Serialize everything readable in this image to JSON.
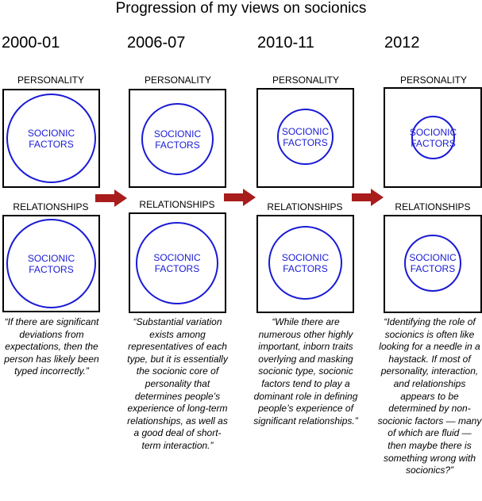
{
  "title": "Progression of my views on socionics",
  "labels": {
    "personality": "PERSONALITY",
    "relationships": "RELATIONSHIPS",
    "socionic_line1": "SOCIONIC",
    "socionic_line2": "FACTORS"
  },
  "periods": [
    {
      "year": "2000-01",
      "quote": "“If there are significant deviations from expectations, then the person has likely been typed incorrectly.”"
    },
    {
      "year": "2006-07",
      "quote": "“Substantial variation exists among representatives of each type, but it is essentially the socionic core of personality that determines people’s experience of long-term relationships, as well as a good deal of short-term interaction.”"
    },
    {
      "year": "2010-11",
      "quote": "“While there are numerous other highly important, inborn traits overlying and masking socionic type, socionic factors tend to play a dominant role in defining people’s experience of significant relationships.”"
    },
    {
      "year": "2012",
      "quote": "“Identifying the role of socionics is often like looking for a needle in a haystack. If most of personality, interaction, and relationships appears to be determined by non-socionic factors — many of which are fluid — then maybe there is something wrong with socionics?”"
    }
  ],
  "colors": {
    "circle": "#1a1ad6",
    "arrow": "#a81c1c"
  },
  "arrow_icon": "right-arrow-icon"
}
